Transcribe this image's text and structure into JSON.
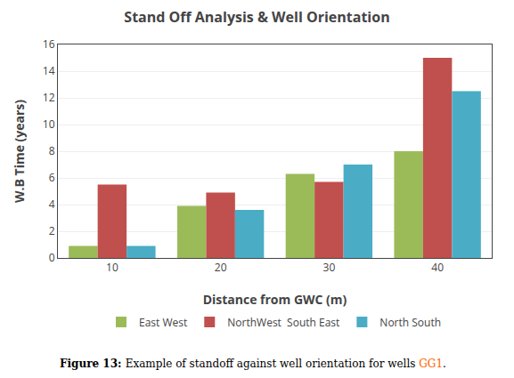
{
  "chart_data": {
    "type": "bar",
    "title": "Stand Off Analysis & Well Orientation",
    "xlabel": "Distance from GWC (m)",
    "ylabel": "W.B Time (years)",
    "categories": [
      "10",
      "20",
      "30",
      "40"
    ],
    "series": [
      {
        "name": "East West",
        "color": "#9BBB59",
        "values": [
          0.9,
          3.9,
          6.3,
          8.0
        ]
      },
      {
        "name": "NorthWest  South East",
        "color": "#C0504D",
        "values": [
          5.5,
          4.9,
          5.7,
          15.0
        ]
      },
      {
        "name": "North South",
        "color": "#4BACC6",
        "values": [
          0.9,
          3.6,
          7.0,
          12.5
        ]
      }
    ],
    "ylim": [
      0,
      16
    ],
    "yticks": [
      0,
      2,
      4,
      6,
      8,
      10,
      12,
      14,
      16
    ],
    "grid": true,
    "legend": "bottom",
    "annotations": [
      {
        "parts": [
          {
            "text": "Figure 13: "
          },
          {
            "text": "Example of standoff against well orientation for wells "
          },
          {
            "text": "GG1",
            "color": "#FF6600"
          },
          {
            "text": "."
          }
        ]
      }
    ]
  }
}
